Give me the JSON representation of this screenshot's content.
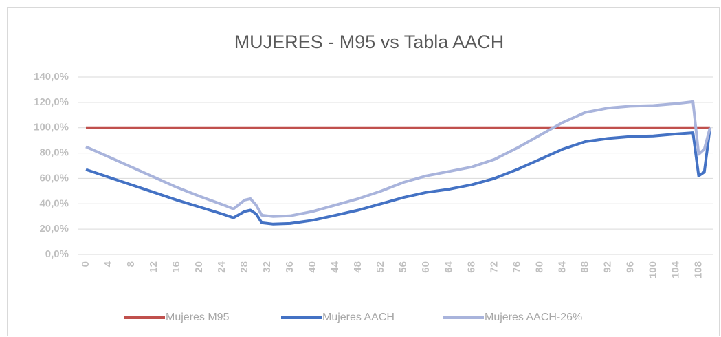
{
  "chart_data": {
    "type": "line",
    "title": "MUJERES - M95 vs Tabla AACH",
    "x": [
      0,
      4,
      8,
      12,
      16,
      20,
      24,
      26,
      28,
      29,
      30,
      31,
      33,
      36,
      40,
      44,
      48,
      52,
      56,
      60,
      64,
      68,
      72,
      76,
      80,
      84,
      88,
      92,
      96,
      100,
      104,
      107,
      108,
      109,
      110
    ],
    "series": [
      {
        "name": "Mujeres M95",
        "color": "#c0504d",
        "values": [
          100,
          100,
          100,
          100,
          100,
          100,
          100,
          100,
          100,
          100,
          100,
          100,
          100,
          100,
          100,
          100,
          100,
          100,
          100,
          100,
          100,
          100,
          100,
          100,
          100,
          100,
          100,
          100,
          100,
          100,
          100,
          100,
          100,
          100,
          100
        ]
      },
      {
        "name": "Mujeres AACH",
        "color": "#4472c4",
        "values": [
          67,
          61,
          55,
          49,
          43,
          37.5,
          32,
          29,
          34,
          35,
          32,
          25,
          24,
          24.5,
          27,
          31,
          35,
          40,
          45,
          49,
          51.5,
          55,
          60,
          67,
          75,
          83,
          89,
          91.5,
          93,
          93.5,
          95,
          96,
          62,
          65,
          100
        ]
      },
      {
        "name": "Mujeres AACH-26%",
        "color": "#a9b4dc",
        "values": [
          85,
          77,
          69,
          61,
          53,
          46,
          39.5,
          36,
          43,
          44,
          39,
          31,
          30,
          30.5,
          34,
          39,
          44,
          50,
          57,
          62,
          65.5,
          69,
          75,
          84,
          94,
          104,
          112,
          115.5,
          117,
          117.5,
          119,
          120.5,
          79,
          83,
          100
        ]
      }
    ],
    "xlim": [
      0,
      110
    ],
    "xticks": [
      0,
      4,
      8,
      12,
      16,
      20,
      24,
      28,
      32,
      36,
      40,
      44,
      48,
      52,
      56,
      60,
      64,
      68,
      72,
      76,
      80,
      84,
      88,
      92,
      96,
      100,
      104,
      108
    ],
    "ylim": [
      0,
      140
    ],
    "yticks": [
      {
        "value": 0,
        "label": "0,0%"
      },
      {
        "value": 20,
        "label": "20,0%"
      },
      {
        "value": 40,
        "label": "40,0%"
      },
      {
        "value": 60,
        "label": "60,0%"
      },
      {
        "value": 80,
        "label": "80,0%"
      },
      {
        "value": 100,
        "label": "100,0%"
      },
      {
        "value": 120,
        "label": "120,0%"
      },
      {
        "value": 140,
        "label": "140,0%"
      }
    ],
    "grid": true,
    "legend": "bottom"
  }
}
